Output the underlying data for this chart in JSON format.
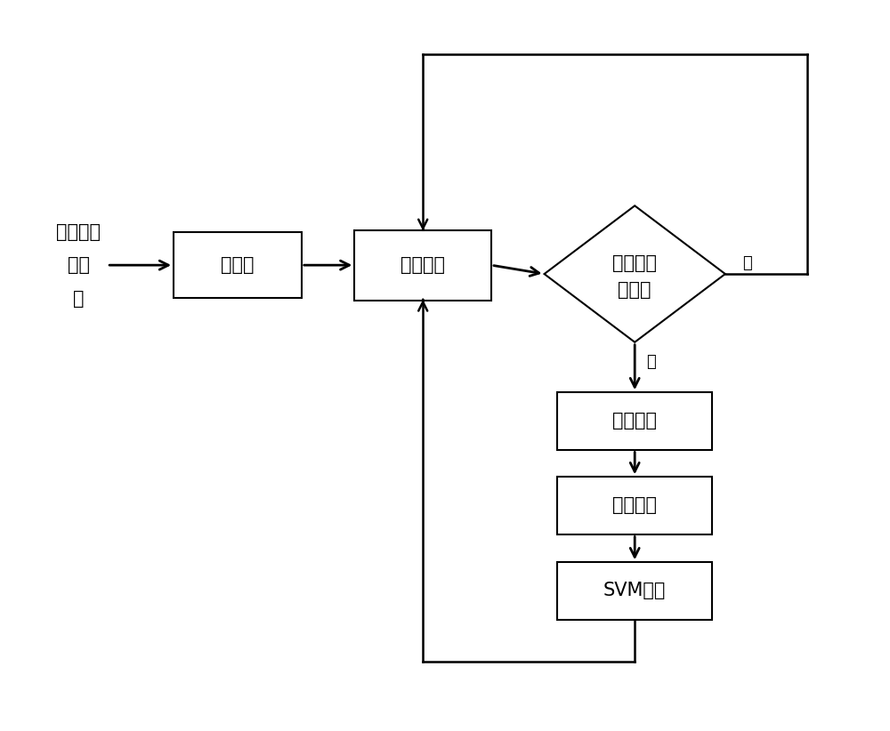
{
  "bg_color": "#ffffff",
  "line_color": "#000000",
  "text_color": "#000000",
  "font_size": 15,
  "label_font_size": 13,
  "input_text": "待检测图\n遥感\n像",
  "input_line1": "待检测图",
  "input_line2": "遥感",
  "input_line3": "像",
  "box1_text": "降采样",
  "box2_text": "滑动窗口",
  "diamond_text1": "是否存在",
  "diamond_text2": "直线段",
  "box3_text": "稀疏编码",
  "box4_text": "显著筛选",
  "box5_text": "SVM判定",
  "no_label": "否",
  "yes_label": "是"
}
